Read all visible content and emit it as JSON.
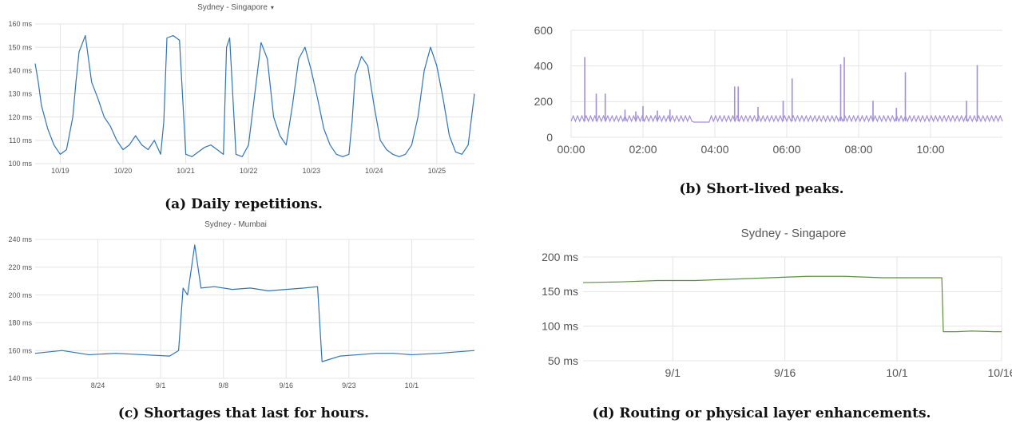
{
  "chart_data": [
    {
      "id": "a",
      "type": "line",
      "title": "Sydney - Singapore",
      "caption": "(a) Daily repetitions.",
      "ylim": [
        100,
        160
      ],
      "yticks": [
        100,
        110,
        120,
        130,
        140,
        150,
        160
      ],
      "ytick_labels": [
        "100 ms",
        "110 ms",
        "120 ms",
        "130 ms",
        "140 ms",
        "150 ms",
        "160 ms"
      ],
      "xlim": [
        0,
        7
      ],
      "xticks": [
        0.4,
        1.4,
        2.4,
        3.4,
        4.4,
        5.4,
        6.4
      ],
      "xtick_labels": [
        "10/19",
        "10/20",
        "10/21",
        "10/22",
        "10/23",
        "10/24",
        "10/25"
      ],
      "grid": true,
      "color": "#2f74b5",
      "series": [
        {
          "x": [
            0,
            0.05,
            0.1,
            0.2,
            0.3,
            0.4,
            0.5,
            0.6,
            0.65,
            0.7,
            0.8,
            0.9,
            1.0,
            1.1,
            1.2,
            1.3,
            1.4,
            1.5,
            1.6,
            1.7,
            1.8,
            1.9,
            2.0,
            2.05,
            2.1,
            2.2,
            2.3,
            2.4,
            2.5,
            2.6,
            2.7,
            2.8,
            2.9,
            3.0,
            3.05,
            3.1,
            3.2,
            3.3,
            3.4,
            3.5,
            3.6,
            3.7,
            3.8,
            3.9,
            4.0,
            4.1,
            4.2,
            4.3,
            4.4,
            4.5,
            4.6,
            4.7,
            4.8,
            4.9,
            5.0,
            5.05,
            5.1,
            5.2,
            5.3,
            5.4,
            5.5,
            5.6,
            5.7,
            5.8,
            5.9,
            6.0,
            6.1,
            6.2,
            6.3,
            6.4,
            6.5,
            6.6,
            6.7,
            6.8,
            6.9,
            7.0
          ],
          "y": [
            143,
            135,
            125,
            115,
            108,
            104,
            106,
            120,
            135,
            148,
            155,
            135,
            128,
            120,
            116,
            110,
            106,
            108,
            112,
            108,
            106,
            110,
            104,
            118,
            154,
            155,
            153,
            104,
            103,
            105,
            107,
            108,
            106,
            104,
            150,
            154,
            104,
            103,
            108,
            130,
            152,
            145,
            120,
            112,
            108,
            125,
            145,
            150,
            140,
            128,
            115,
            108,
            104,
            103,
            104,
            118,
            138,
            146,
            142,
            125,
            110,
            106,
            104,
            103,
            104,
            108,
            120,
            140,
            150,
            142,
            128,
            112,
            105,
            104,
            108,
            130
          ]
        }
      ]
    },
    {
      "id": "b",
      "type": "line",
      "title": "",
      "caption": "(b) Short-lived peaks.",
      "ylim": [
        0,
        600
      ],
      "yticks": [
        0,
        200,
        400,
        600
      ],
      "ytick_labels": [
        "0",
        "200",
        "400",
        "600"
      ],
      "xlim": [
        0,
        12
      ],
      "xticks": [
        0,
        2,
        4,
        6,
        8,
        10
      ],
      "xtick_labels": [
        "00:00",
        "02:00",
        "04:00",
        "06:00",
        "08:00",
        "10:00"
      ],
      "grid": true,
      "color": "#a48fd8",
      "baseline": [
        90,
        120
      ],
      "gap": [
        3.4,
        3.9
      ],
      "peaks": [
        [
          0.38,
          450
        ],
        [
          0.7,
          245
        ],
        [
          0.95,
          245
        ],
        [
          1.5,
          155
        ],
        [
          1.8,
          145
        ],
        [
          2.0,
          175
        ],
        [
          2.4,
          150
        ],
        [
          2.75,
          155
        ],
        [
          4.55,
          285
        ],
        [
          4.65,
          285
        ],
        [
          5.2,
          170
        ],
        [
          5.9,
          205
        ],
        [
          6.15,
          330
        ],
        [
          7.5,
          410
        ],
        [
          7.6,
          450
        ],
        [
          8.4,
          205
        ],
        [
          9.3,
          365
        ],
        [
          9.05,
          165
        ],
        [
          11.0,
          205
        ],
        [
          11.3,
          405
        ]
      ]
    },
    {
      "id": "c",
      "type": "line",
      "title": "Sydney - Mumbai",
      "caption": "(c) Shortages that last for hours.",
      "ylim": [
        140,
        240
      ],
      "yticks": [
        140,
        160,
        180,
        200,
        220,
        240
      ],
      "ytick_labels": [
        "140 ms",
        "160 ms",
        "180 ms",
        "200 ms",
        "220 ms",
        "240 ms"
      ],
      "xlim": [
        0,
        49
      ],
      "xticks": [
        7,
        14,
        21,
        28,
        35,
        42
      ],
      "xtick_labels": [
        "8/24",
        "9/1",
        "9/8",
        "9/16",
        "9/23",
        "10/1"
      ],
      "grid": true,
      "color": "#2f74b5",
      "series": [
        {
          "x": [
            0,
            3,
            6,
            9,
            12,
            15,
            16,
            16.5,
            17,
            17.8,
            18.5,
            20,
            22,
            24,
            26,
            28,
            30,
            31.5,
            32,
            34,
            36,
            38,
            40,
            42,
            45,
            49
          ],
          "y": [
            158,
            160,
            157,
            158,
            157,
            156,
            160,
            205,
            200,
            236,
            205,
            206,
            204,
            205,
            203,
            204,
            205,
            206,
            152,
            156,
            157,
            158,
            158,
            157,
            158,
            160
          ]
        }
      ]
    },
    {
      "id": "d",
      "type": "line",
      "title": "Sydney - Singapore",
      "caption": "(d) Routing or physical layer enhancements.",
      "ylim": [
        50,
        200
      ],
      "yticks": [
        50,
        100,
        150,
        200
      ],
      "ytick_labels": [
        "50 ms",
        "100 ms",
        "150 ms",
        "200 ms"
      ],
      "xlim": [
        0,
        56
      ],
      "xticks": [
        12,
        27,
        42,
        56
      ],
      "xtick_labels": [
        "9/1",
        "9/16",
        "10/1",
        "10/16"
      ],
      "grid": true,
      "color": "#5c8f3c",
      "series": [
        {
          "x": [
            0,
            5,
            10,
            15,
            20,
            25,
            30,
            35,
            40,
            45,
            48,
            48.2,
            50,
            52,
            55,
            56
          ],
          "y": [
            163,
            164,
            166,
            166,
            168,
            170,
            172,
            172,
            170,
            170,
            170,
            92,
            92,
            93,
            92,
            92
          ]
        }
      ]
    }
  ]
}
